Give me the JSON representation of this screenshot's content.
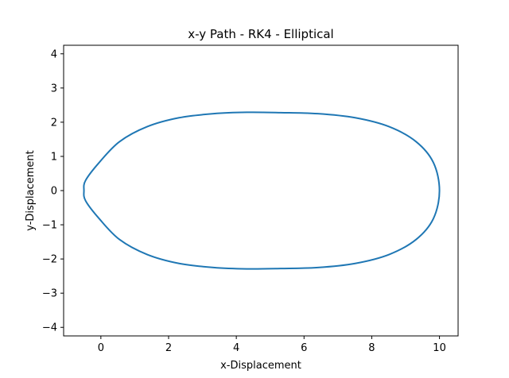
{
  "chart_data": {
    "type": "line",
    "title": "x-y Path - RK4 - Elliptical",
    "xlabel": "x-Displacement",
    "ylabel": "y-Displacement",
    "xlim": [
      -1.1,
      10.55
    ],
    "ylim": [
      -4.25,
      4.25
    ],
    "xticks": [
      0,
      2,
      4,
      6,
      8,
      10
    ],
    "xtick_labels": [
      "0",
      "2",
      "4",
      "6",
      "8",
      "10"
    ],
    "yticks": [
      -4,
      -3,
      -2,
      -1,
      0,
      1,
      2,
      3,
      4
    ],
    "ytick_labels": [
      "−4",
      "−3",
      "−2",
      "−1",
      "0",
      "1",
      "2",
      "3",
      "4"
    ],
    "grid": false,
    "series": [
      {
        "color": "#1f77b4",
        "x": [
          10.0,
          9.82,
          9.31,
          8.51,
          7.51,
          6.41,
          5.31,
          4.31,
          3.33,
          2.31,
          1.37,
          0.55,
          -0.05,
          -0.45,
          -0.5,
          -0.45,
          -0.05,
          0.55,
          1.37,
          2.31,
          3.33,
          4.31,
          5.31,
          6.41,
          7.51,
          8.51,
          9.31,
          9.82,
          10.0
        ],
        "y": [
          0.0,
          0.82,
          1.43,
          1.87,
          2.13,
          2.25,
          2.28,
          2.29,
          2.25,
          2.13,
          1.87,
          1.43,
          0.82,
          0.3,
          0.0,
          -0.3,
          -0.82,
          -1.43,
          -1.87,
          -2.13,
          -2.25,
          -2.29,
          -2.28,
          -2.25,
          -2.13,
          -1.87,
          -1.43,
          -0.82,
          0.0
        ]
      }
    ]
  }
}
